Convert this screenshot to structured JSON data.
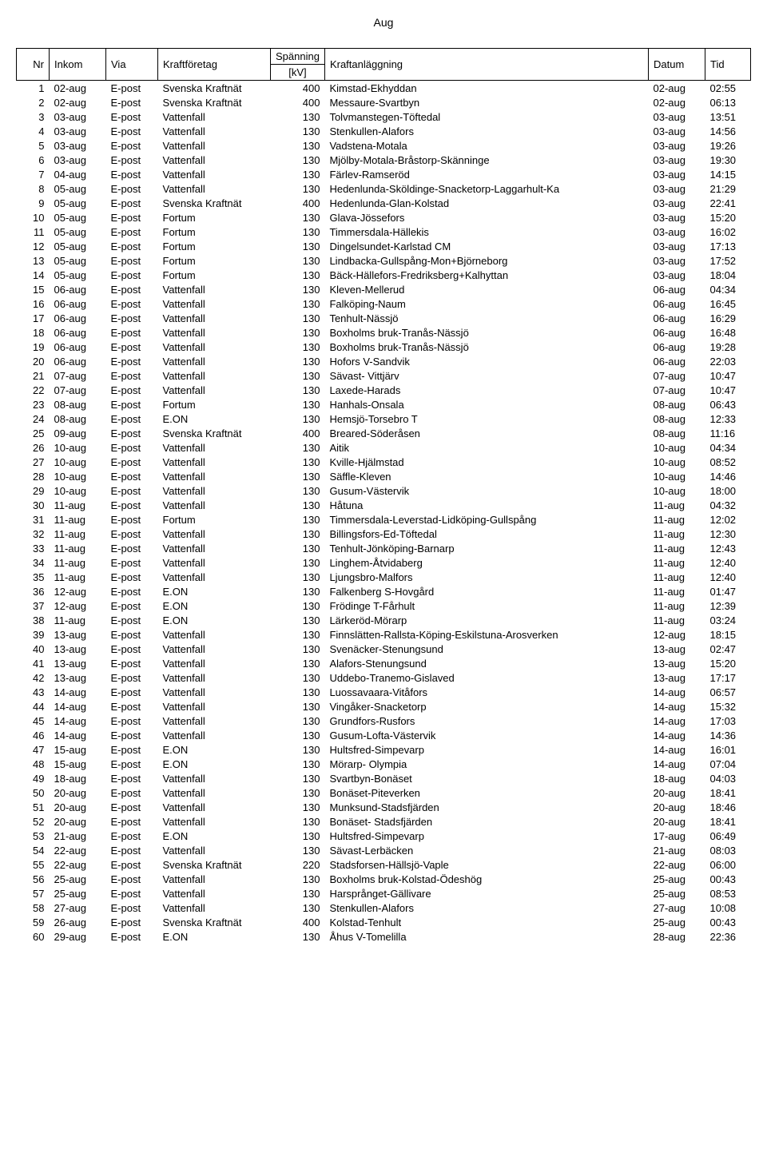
{
  "page_title": "Aug",
  "columns": {
    "nr": "Nr",
    "inkom": "Inkom",
    "via": "Via",
    "kraftforetag": "Kraftföretag",
    "spanning_top": "Spänning",
    "spanning_bot": "[kV]",
    "kraftanlaggning": "Kraftanläggning",
    "datum": "Datum",
    "tid": "Tid"
  },
  "rows": [
    {
      "nr": 1,
      "inkom": "02-aug",
      "via": "E-post",
      "kraftforetag": "Svenska Kraftnät",
      "spanning": 400,
      "kraftanlaggning": "Kimstad-Ekhyddan",
      "datum": "02-aug",
      "tid": "02:55"
    },
    {
      "nr": 2,
      "inkom": "02-aug",
      "via": "E-post",
      "kraftforetag": "Svenska Kraftnät",
      "spanning": 400,
      "kraftanlaggning": "Messaure-Svartbyn",
      "datum": "02-aug",
      "tid": "06:13"
    },
    {
      "nr": 3,
      "inkom": "03-aug",
      "via": "E-post",
      "kraftforetag": "Vattenfall",
      "spanning": 130,
      "kraftanlaggning": "Tolvmanstegen-Töftedal",
      "datum": "03-aug",
      "tid": "13:51"
    },
    {
      "nr": 4,
      "inkom": "03-aug",
      "via": "E-post",
      "kraftforetag": "Vattenfall",
      "spanning": 130,
      "kraftanlaggning": "Stenkullen-Alafors",
      "datum": "03-aug",
      "tid": "14:56"
    },
    {
      "nr": 5,
      "inkom": "03-aug",
      "via": "E-post",
      "kraftforetag": "Vattenfall",
      "spanning": 130,
      "kraftanlaggning": "Vadstena-Motala",
      "datum": "03-aug",
      "tid": "19:26"
    },
    {
      "nr": 6,
      "inkom": "03-aug",
      "via": "E-post",
      "kraftforetag": "Vattenfall",
      "spanning": 130,
      "kraftanlaggning": "Mjölby-Motala-Bråstorp-Skänninge",
      "datum": "03-aug",
      "tid": "19:30"
    },
    {
      "nr": 7,
      "inkom": "04-aug",
      "via": "E-post",
      "kraftforetag": "Vattenfall",
      "spanning": 130,
      "kraftanlaggning": "Färlev-Ramseröd",
      "datum": "03-aug",
      "tid": "14:15"
    },
    {
      "nr": 8,
      "inkom": "05-aug",
      "via": "E-post",
      "kraftforetag": "Vattenfall",
      "spanning": 130,
      "kraftanlaggning": "Hedenlunda-Sköldinge-Snacketorp-Laggarhult-Ka",
      "datum": "03-aug",
      "tid": "21:29"
    },
    {
      "nr": 9,
      "inkom": "05-aug",
      "via": "E-post",
      "kraftforetag": "Svenska Kraftnät",
      "spanning": 400,
      "kraftanlaggning": "Hedenlunda-Glan-Kolstad",
      "datum": "03-aug",
      "tid": "22:41"
    },
    {
      "nr": 10,
      "inkom": "05-aug",
      "via": "E-post",
      "kraftforetag": "Fortum",
      "spanning": 130,
      "kraftanlaggning": "Glava-Jössefors",
      "datum": "03-aug",
      "tid": "15:20"
    },
    {
      "nr": 11,
      "inkom": "05-aug",
      "via": "E-post",
      "kraftforetag": "Fortum",
      "spanning": 130,
      "kraftanlaggning": "Timmersdala-Hällekis",
      "datum": "03-aug",
      "tid": "16:02"
    },
    {
      "nr": 12,
      "inkom": "05-aug",
      "via": "E-post",
      "kraftforetag": "Fortum",
      "spanning": 130,
      "kraftanlaggning": "Dingelsundet-Karlstad CM",
      "datum": "03-aug",
      "tid": "17:13"
    },
    {
      "nr": 13,
      "inkom": "05-aug",
      "via": "E-post",
      "kraftforetag": "Fortum",
      "spanning": 130,
      "kraftanlaggning": "Lindbacka-Gullspång-Mon+Björneborg",
      "datum": "03-aug",
      "tid": "17:52"
    },
    {
      "nr": 14,
      "inkom": "05-aug",
      "via": "E-post",
      "kraftforetag": "Fortum",
      "spanning": 130,
      "kraftanlaggning": "Bäck-Hällefors-Fredriksberg+Kalhyttan",
      "datum": "03-aug",
      "tid": "18:04"
    },
    {
      "nr": 15,
      "inkom": "06-aug",
      "via": "E-post",
      "kraftforetag": "Vattenfall",
      "spanning": 130,
      "kraftanlaggning": "Kleven-Mellerud",
      "datum": "06-aug",
      "tid": "04:34"
    },
    {
      "nr": 16,
      "inkom": "06-aug",
      "via": "E-post",
      "kraftforetag": "Vattenfall",
      "spanning": 130,
      "kraftanlaggning": "Falköping-Naum",
      "datum": "06-aug",
      "tid": "16:45"
    },
    {
      "nr": 17,
      "inkom": "06-aug",
      "via": "E-post",
      "kraftforetag": "Vattenfall",
      "spanning": 130,
      "kraftanlaggning": "Tenhult-Nässjö",
      "datum": "06-aug",
      "tid": "16:29"
    },
    {
      "nr": 18,
      "inkom": "06-aug",
      "via": "E-post",
      "kraftforetag": "Vattenfall",
      "spanning": 130,
      "kraftanlaggning": "Boxholms bruk-Tranås-Nässjö",
      "datum": "06-aug",
      "tid": "16:48"
    },
    {
      "nr": 19,
      "inkom": "06-aug",
      "via": "E-post",
      "kraftforetag": "Vattenfall",
      "spanning": 130,
      "kraftanlaggning": "Boxholms bruk-Tranås-Nässjö",
      "datum": "06-aug",
      "tid": "19:28"
    },
    {
      "nr": 20,
      "inkom": "06-aug",
      "via": "E-post",
      "kraftforetag": "Vattenfall",
      "spanning": 130,
      "kraftanlaggning": "Hofors V-Sandvik",
      "datum": "06-aug",
      "tid": "22:03"
    },
    {
      "nr": 21,
      "inkom": "07-aug",
      "via": "E-post",
      "kraftforetag": "Vattenfall",
      "spanning": 130,
      "kraftanlaggning": "Sävast- Vittjärv",
      "datum": "07-aug",
      "tid": "10:47"
    },
    {
      "nr": 22,
      "inkom": "07-aug",
      "via": "E-post",
      "kraftforetag": "Vattenfall",
      "spanning": 130,
      "kraftanlaggning": "Laxede-Harads",
      "datum": "07-aug",
      "tid": "10:47"
    },
    {
      "nr": 23,
      "inkom": "08-aug",
      "via": "E-post",
      "kraftforetag": "Fortum",
      "spanning": 130,
      "kraftanlaggning": "Hanhals-Onsala",
      "datum": "08-aug",
      "tid": "06:43"
    },
    {
      "nr": 24,
      "inkom": "08-aug",
      "via": "E-post",
      "kraftforetag": "E.ON",
      "spanning": 130,
      "kraftanlaggning": "Hemsjö-Torsebro T",
      "datum": "08-aug",
      "tid": "12:33"
    },
    {
      "nr": 25,
      "inkom": "09-aug",
      "via": "E-post",
      "kraftforetag": "Svenska Kraftnät",
      "spanning": 400,
      "kraftanlaggning": "Breared-Söderåsen",
      "datum": "08-aug",
      "tid": "11:16"
    },
    {
      "nr": 26,
      "inkom": "10-aug",
      "via": "E-post",
      "kraftforetag": "Vattenfall",
      "spanning": 130,
      "kraftanlaggning": "Aitik",
      "datum": "10-aug",
      "tid": "04:34"
    },
    {
      "nr": 27,
      "inkom": "10-aug",
      "via": "E-post",
      "kraftforetag": "Vattenfall",
      "spanning": 130,
      "kraftanlaggning": "Kville-Hjälmstad",
      "datum": "10-aug",
      "tid": "08:52"
    },
    {
      "nr": 28,
      "inkom": "10-aug",
      "via": "E-post",
      "kraftforetag": "Vattenfall",
      "spanning": 130,
      "kraftanlaggning": "Säffle-Kleven",
      "datum": "10-aug",
      "tid": "14:46"
    },
    {
      "nr": 29,
      "inkom": "10-aug",
      "via": "E-post",
      "kraftforetag": "Vattenfall",
      "spanning": 130,
      "kraftanlaggning": "Gusum-Västervik",
      "datum": "10-aug",
      "tid": "18:00"
    },
    {
      "nr": 30,
      "inkom": "11-aug",
      "via": "E-post",
      "kraftforetag": "Vattenfall",
      "spanning": 130,
      "kraftanlaggning": "Håtuna",
      "datum": "11-aug",
      "tid": "04:32"
    },
    {
      "nr": 31,
      "inkom": "11-aug",
      "via": "E-post",
      "kraftforetag": "Fortum",
      "spanning": 130,
      "kraftanlaggning": "Timmersdala-Leverstad-Lidköping-Gullspång",
      "datum": "11-aug",
      "tid": "12:02"
    },
    {
      "nr": 32,
      "inkom": "11-aug",
      "via": "E-post",
      "kraftforetag": "Vattenfall",
      "spanning": 130,
      "kraftanlaggning": "Billingsfors-Ed-Töftedal",
      "datum": "11-aug",
      "tid": "12:30"
    },
    {
      "nr": 33,
      "inkom": "11-aug",
      "via": "E-post",
      "kraftforetag": "Vattenfall",
      "spanning": 130,
      "kraftanlaggning": "Tenhult-Jönköping-Barnarp",
      "datum": "11-aug",
      "tid": "12:43"
    },
    {
      "nr": 34,
      "inkom": "11-aug",
      "via": "E-post",
      "kraftforetag": "Vattenfall",
      "spanning": 130,
      "kraftanlaggning": "Linghem-Åtvidaberg",
      "datum": "11-aug",
      "tid": "12:40"
    },
    {
      "nr": 35,
      "inkom": "11-aug",
      "via": "E-post",
      "kraftforetag": "Vattenfall",
      "spanning": 130,
      "kraftanlaggning": "Ljungsbro-Malfors",
      "datum": "11-aug",
      "tid": "12:40"
    },
    {
      "nr": 36,
      "inkom": "12-aug",
      "via": "E-post",
      "kraftforetag": "E.ON",
      "spanning": 130,
      "kraftanlaggning": "Falkenberg S-Hovgård",
      "datum": "11-aug",
      "tid": "01:47"
    },
    {
      "nr": 37,
      "inkom": "12-aug",
      "via": "E-post",
      "kraftforetag": "E.ON",
      "spanning": 130,
      "kraftanlaggning": "Frödinge T-Fårhult",
      "datum": "11-aug",
      "tid": "12:39"
    },
    {
      "nr": 38,
      "inkom": "11-aug",
      "via": "E-post",
      "kraftforetag": "E.ON",
      "spanning": 130,
      "kraftanlaggning": "Lärkeröd-Mörarp",
      "datum": "11-aug",
      "tid": "03:24"
    },
    {
      "nr": 39,
      "inkom": "13-aug",
      "via": "E-post",
      "kraftforetag": "Vattenfall",
      "spanning": 130,
      "kraftanlaggning": "Finnslätten-Rallsta-Köping-Eskilstuna-Arosverken",
      "datum": "12-aug",
      "tid": "18:15"
    },
    {
      "nr": 40,
      "inkom": "13-aug",
      "via": "E-post",
      "kraftforetag": "Vattenfall",
      "spanning": 130,
      "kraftanlaggning": "Svenäcker-Stenungsund",
      "datum": "13-aug",
      "tid": "02:47"
    },
    {
      "nr": 41,
      "inkom": "13-aug",
      "via": "E-post",
      "kraftforetag": "Vattenfall",
      "spanning": 130,
      "kraftanlaggning": "Alafors-Stenungsund",
      "datum": "13-aug",
      "tid": "15:20"
    },
    {
      "nr": 42,
      "inkom": "13-aug",
      "via": "E-post",
      "kraftforetag": "Vattenfall",
      "spanning": 130,
      "kraftanlaggning": "Uddebo-Tranemo-Gislaved",
      "datum": "13-aug",
      "tid": "17:17"
    },
    {
      "nr": 43,
      "inkom": "14-aug",
      "via": "E-post",
      "kraftforetag": "Vattenfall",
      "spanning": 130,
      "kraftanlaggning": "Luossavaara-Vitåfors",
      "datum": "14-aug",
      "tid": "06:57"
    },
    {
      "nr": 44,
      "inkom": "14-aug",
      "via": "E-post",
      "kraftforetag": "Vattenfall",
      "spanning": 130,
      "kraftanlaggning": "Vingåker-Snacketorp",
      "datum": "14-aug",
      "tid": "15:32"
    },
    {
      "nr": 45,
      "inkom": "14-aug",
      "via": "E-post",
      "kraftforetag": "Vattenfall",
      "spanning": 130,
      "kraftanlaggning": "Grundfors-Rusfors",
      "datum": "14-aug",
      "tid": "17:03"
    },
    {
      "nr": 46,
      "inkom": "14-aug",
      "via": "E-post",
      "kraftforetag": "Vattenfall",
      "spanning": 130,
      "kraftanlaggning": "Gusum-Lofta-Västervik",
      "datum": "14-aug",
      "tid": "14:36"
    },
    {
      "nr": 47,
      "inkom": "15-aug",
      "via": "E-post",
      "kraftforetag": "E.ON",
      "spanning": 130,
      "kraftanlaggning": "Hultsfred-Simpevarp",
      "datum": "14-aug",
      "tid": "16:01"
    },
    {
      "nr": 48,
      "inkom": "15-aug",
      "via": "E-post",
      "kraftforetag": "E.ON",
      "spanning": 130,
      "kraftanlaggning": "Mörarp- Olympia",
      "datum": "14-aug",
      "tid": "07:04"
    },
    {
      "nr": 49,
      "inkom": "18-aug",
      "via": "E-post",
      "kraftforetag": "Vattenfall",
      "spanning": 130,
      "kraftanlaggning": "Svartbyn-Bonäset",
      "datum": "18-aug",
      "tid": "04:03"
    },
    {
      "nr": 50,
      "inkom": "20-aug",
      "via": "E-post",
      "kraftforetag": "Vattenfall",
      "spanning": 130,
      "kraftanlaggning": "Bonäset-Piteverken",
      "datum": "20-aug",
      "tid": "18:41"
    },
    {
      "nr": 51,
      "inkom": "20-aug",
      "via": "E-post",
      "kraftforetag": "Vattenfall",
      "spanning": 130,
      "kraftanlaggning": "Munksund-Stadsfjärden",
      "datum": "20-aug",
      "tid": "18:46"
    },
    {
      "nr": 52,
      "inkom": "20-aug",
      "via": "E-post",
      "kraftforetag": "Vattenfall",
      "spanning": 130,
      "kraftanlaggning": "Bonäset- Stadsfjärden",
      "datum": "20-aug",
      "tid": "18:41"
    },
    {
      "nr": 53,
      "inkom": "21-aug",
      "via": "E-post",
      "kraftforetag": "E.ON",
      "spanning": 130,
      "kraftanlaggning": "Hultsfred-Simpevarp",
      "datum": "17-aug",
      "tid": "06:49"
    },
    {
      "nr": 54,
      "inkom": "22-aug",
      "via": "E-post",
      "kraftforetag": "Vattenfall",
      "spanning": 130,
      "kraftanlaggning": "Sävast-Lerbäcken",
      "datum": "21-aug",
      "tid": "08:03"
    },
    {
      "nr": 55,
      "inkom": "22-aug",
      "via": "E-post",
      "kraftforetag": "Svenska Kraftnät",
      "spanning": 220,
      "kraftanlaggning": "Stadsforsen-Hällsjö-Vaple",
      "datum": "22-aug",
      "tid": "06:00"
    },
    {
      "nr": 56,
      "inkom": "25-aug",
      "via": "E-post",
      "kraftforetag": "Vattenfall",
      "spanning": 130,
      "kraftanlaggning": "Boxholms bruk-Kolstad-Ödeshög",
      "datum": "25-aug",
      "tid": "00:43"
    },
    {
      "nr": 57,
      "inkom": "25-aug",
      "via": "E-post",
      "kraftforetag": "Vattenfall",
      "spanning": 130,
      "kraftanlaggning": "Harsprånget-Gällivare",
      "datum": "25-aug",
      "tid": "08:53"
    },
    {
      "nr": 58,
      "inkom": "27-aug",
      "via": "E-post",
      "kraftforetag": "Vattenfall",
      "spanning": 130,
      "kraftanlaggning": "Stenkullen-Alafors",
      "datum": "27-aug",
      "tid": "10:08"
    },
    {
      "nr": 59,
      "inkom": "26-aug",
      "via": "E-post",
      "kraftforetag": "Svenska Kraftnät",
      "spanning": 400,
      "kraftanlaggning": "Kolstad-Tenhult",
      "datum": "25-aug",
      "tid": "00:43"
    },
    {
      "nr": 60,
      "inkom": "29-aug",
      "via": "E-post",
      "kraftforetag": "E.ON",
      "spanning": 130,
      "kraftanlaggning": "Åhus V-Tomelilla",
      "datum": "28-aug",
      "tid": "22:36"
    }
  ]
}
